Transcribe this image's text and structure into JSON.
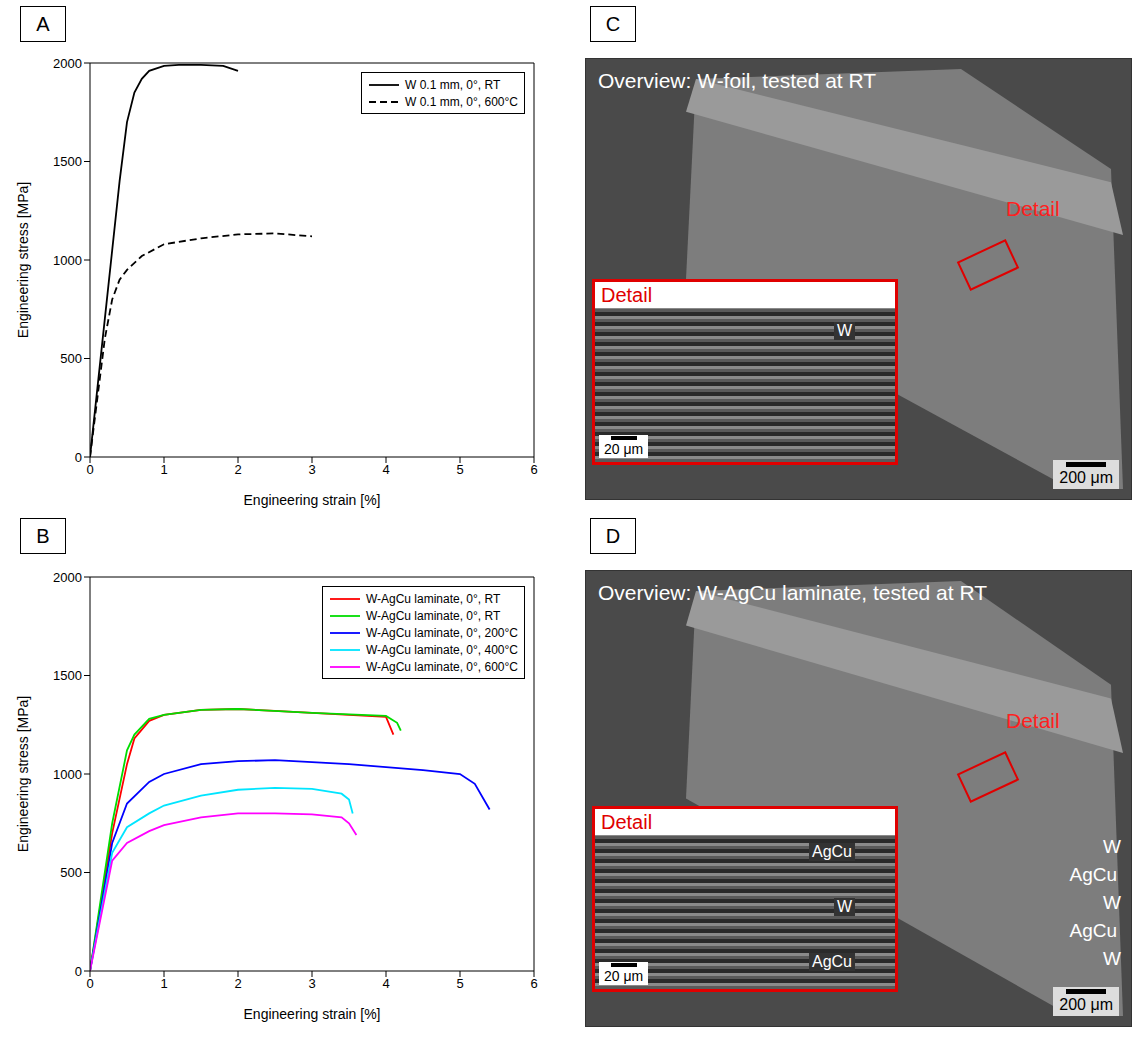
{
  "chart_data": [
    {
      "panel": "A",
      "type": "line",
      "xlabel": "Engineering strain [%]",
      "ylabel": "Engineering stress [MPa]",
      "xlim": [
        0,
        6
      ],
      "ylim": [
        0,
        2000
      ],
      "xticks": [
        0,
        1,
        2,
        3,
        4,
        5,
        6
      ],
      "yticks": [
        0,
        500,
        1000,
        1500,
        2000
      ],
      "legend": "upper right",
      "series": [
        {
          "name": "W 0.1 mm, 0°, RT",
          "color": "#000000",
          "line_style": "solid",
          "x": [
            0,
            0.1,
            0.2,
            0.3,
            0.4,
            0.5,
            0.6,
            0.7,
            0.8,
            1.0,
            1.2,
            1.5,
            1.8,
            2.0
          ],
          "values": [
            0,
            350,
            700,
            1050,
            1400,
            1700,
            1850,
            1920,
            1960,
            1985,
            1990,
            1990,
            1985,
            1960
          ]
        },
        {
          "name": "W 0.1 mm, 0°, 600°C",
          "color": "#000000",
          "line_style": "dashed",
          "x": [
            0,
            0.1,
            0.2,
            0.3,
            0.4,
            0.5,
            0.7,
            1.0,
            1.5,
            2.0,
            2.5,
            3.0
          ],
          "values": [
            0,
            300,
            600,
            800,
            900,
            950,
            1020,
            1080,
            1110,
            1130,
            1135,
            1120
          ]
        }
      ]
    },
    {
      "panel": "B",
      "type": "line",
      "xlabel": "Engineering strain [%]",
      "ylabel": "Engineering stress [MPa]",
      "xlim": [
        0,
        6
      ],
      "ylim": [
        0,
        2000
      ],
      "xticks": [
        0,
        1,
        2,
        3,
        4,
        5,
        6
      ],
      "yticks": [
        0,
        500,
        1000,
        1500,
        2000
      ],
      "legend": "upper right",
      "series": [
        {
          "name": "W-AgCu laminate, 0°, RT",
          "color": "#ff0000",
          "line_style": "solid",
          "x": [
            0,
            0.3,
            0.5,
            0.6,
            0.8,
            1.0,
            1.5,
            2.0,
            2.5,
            3.0,
            3.5,
            4.0,
            4.1
          ],
          "values": [
            0,
            700,
            1050,
            1180,
            1270,
            1300,
            1325,
            1330,
            1320,
            1310,
            1300,
            1290,
            1200
          ]
        },
        {
          "name": "W-AgCu laminate, 0°, RT",
          "color": "#00dd00",
          "line_style": "solid",
          "x": [
            0,
            0.3,
            0.5,
            0.6,
            0.8,
            1.0,
            1.5,
            2.0,
            3.0,
            4.0,
            4.15,
            4.2
          ],
          "values": [
            0,
            750,
            1120,
            1200,
            1280,
            1300,
            1325,
            1330,
            1310,
            1295,
            1260,
            1220
          ]
        },
        {
          "name": "W-AgCu laminate, 0°, 200°C",
          "color": "#0000ff",
          "line_style": "solid",
          "x": [
            0,
            0.3,
            0.5,
            0.8,
            1.0,
            1.5,
            2.0,
            2.5,
            3.0,
            3.5,
            4.0,
            4.5,
            5.0,
            5.2,
            5.4
          ],
          "values": [
            0,
            650,
            850,
            960,
            1000,
            1050,
            1065,
            1070,
            1060,
            1050,
            1035,
            1020,
            1000,
            950,
            820
          ]
        },
        {
          "name": "W-AgCu laminate, 0°, 400°C",
          "color": "#00e5ff",
          "line_style": "solid",
          "x": [
            0,
            0.3,
            0.5,
            0.8,
            1.0,
            1.5,
            2.0,
            2.5,
            3.0,
            3.4,
            3.5,
            3.55
          ],
          "values": [
            0,
            600,
            730,
            800,
            840,
            890,
            920,
            930,
            925,
            900,
            870,
            800
          ]
        },
        {
          "name": "W-AgCu laminate, 0°, 600°C",
          "color": "#ff00ff",
          "line_style": "solid",
          "x": [
            0,
            0.3,
            0.5,
            0.8,
            1.0,
            1.5,
            2.0,
            2.5,
            3.0,
            3.4,
            3.5,
            3.6
          ],
          "values": [
            0,
            560,
            650,
            710,
            740,
            780,
            800,
            800,
            795,
            780,
            750,
            690
          ]
        }
      ]
    }
  ],
  "images": [
    {
      "panel": "C",
      "title": "Overview: W-foil, tested at RT",
      "callout": "Detail",
      "scale_bar": "200 μm",
      "layer_labels": [],
      "inset": {
        "title": "Detail",
        "labels": [
          "W"
        ],
        "scale_bar": "20 μm"
      }
    },
    {
      "panel": "D",
      "title": "Overview: W-AgCu laminate, tested at RT",
      "callout": "Detail",
      "scale_bar": "200 μm",
      "layer_labels": [
        "W",
        "AgCu",
        "W",
        "AgCu",
        "W"
      ],
      "inset": {
        "title": "Detail",
        "labels": [
          "AgCu",
          "W",
          "AgCu"
        ],
        "scale_bar": "20 μm"
      }
    }
  ]
}
